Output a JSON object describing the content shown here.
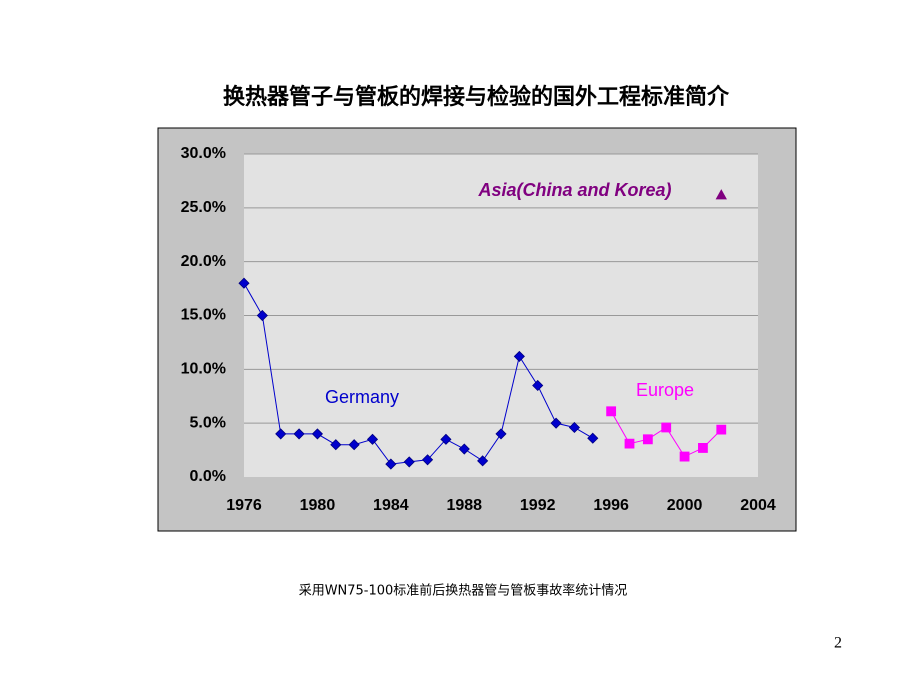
{
  "title": "换热器管子与管板的焊接与检验的国外工程标准简介",
  "caption": "采用WN75-100标准前后换热器管与管板事故率统计情况",
  "page_number": "2",
  "chart_data": {
    "type": "line",
    "x": [
      1976,
      1977,
      1978,
      1979,
      1980,
      1981,
      1982,
      1983,
      1984,
      1985,
      1986,
      1987,
      1988,
      1989,
      1990,
      1991,
      1992,
      1993,
      1994,
      1995,
      1996,
      1997,
      1998,
      1999,
      2000,
      2001,
      2002
    ],
    "series": [
      {
        "name": "Germany",
        "color": "#0000cc",
        "marker": "diamond",
        "values": [
          18,
          15,
          4,
          4,
          4,
          3,
          3,
          3.5,
          1.2,
          1.4,
          1.6,
          3.5,
          2.6,
          1.5,
          4,
          11.2,
          8.5,
          5,
          4.6,
          3.6,
          null,
          null,
          null,
          null,
          null,
          null,
          null
        ]
      },
      {
        "name": "Europe",
        "color": "#ff00ff",
        "marker": "square",
        "values": [
          null,
          null,
          null,
          null,
          null,
          null,
          null,
          null,
          null,
          null,
          null,
          null,
          null,
          null,
          null,
          null,
          null,
          null,
          null,
          null,
          6.1,
          3.1,
          3.5,
          4.6,
          1.9,
          2.7,
          4.4
        ]
      },
      {
        "name": "Asia(China and Korea)",
        "color": "#800080",
        "marker": "triangle",
        "values": [
          null,
          null,
          null,
          null,
          null,
          null,
          null,
          null,
          null,
          null,
          null,
          null,
          null,
          null,
          null,
          null,
          null,
          null,
          null,
          null,
          null,
          null,
          null,
          null,
          null,
          null,
          26.2
        ]
      }
    ],
    "xlim": [
      1976,
      2004
    ],
    "xticks": [
      1976,
      1980,
      1984,
      1988,
      1992,
      1996,
      2000,
      2004
    ],
    "ylim": [
      0,
      30
    ],
    "yticks": [
      {
        "value": 0,
        "label": "0.0%"
      },
      {
        "value": 5,
        "label": "5.0%"
      },
      {
        "value": 10,
        "label": "10.0%"
      },
      {
        "value": 15,
        "label": "15.0%"
      },
      {
        "value": 20,
        "label": "20.0%"
      },
      {
        "value": 25,
        "label": "25.0%"
      },
      {
        "value": 30,
        "label": "30.0%"
      }
    ],
    "grid": true
  }
}
